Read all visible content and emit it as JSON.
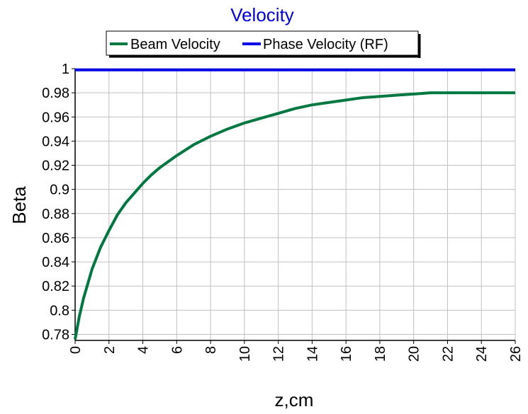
{
  "chart_data": {
    "type": "line",
    "title": "Velocity",
    "xlabel": "z,cm",
    "ylabel": "Beta",
    "xlim": [
      0,
      26
    ],
    "ylim": [
      0.775,
      1.0
    ],
    "x_ticks": [
      "0",
      "2",
      "4",
      "6",
      "8",
      "10",
      "12",
      "14",
      "16",
      "18",
      "20",
      "22",
      "24",
      "26"
    ],
    "y_ticks": [
      "1",
      "0.98",
      "0.96",
      "0.94",
      "0.92",
      "0.9",
      "0.88",
      "0.86",
      "0.84",
      "0.82",
      "0.8",
      "0.78"
    ],
    "grid": true,
    "legend_position": "top-center",
    "series": [
      {
        "name": "Beam Velocity",
        "color": "#007840",
        "x": [
          0,
          0.25,
          0.5,
          0.75,
          1,
          1.5,
          2,
          2.5,
          3,
          3.5,
          4,
          4.5,
          5,
          5.5,
          6,
          7,
          8,
          9,
          10,
          11,
          12,
          13,
          14,
          15,
          16,
          17,
          18,
          19,
          20,
          21,
          22,
          23,
          24,
          25,
          26
        ],
        "values": [
          0.776,
          0.795,
          0.81,
          0.822,
          0.834,
          0.852,
          0.866,
          0.879,
          0.889,
          0.897,
          0.905,
          0.912,
          0.918,
          0.923,
          0.928,
          0.937,
          0.944,
          0.95,
          0.955,
          0.959,
          0.963,
          0.967,
          0.97,
          0.972,
          0.974,
          0.976,
          0.977,
          0.978,
          0.979,
          0.98,
          0.98,
          0.98,
          0.98,
          0.98,
          0.98
        ]
      },
      {
        "name": "Phase Velocity (RF)",
        "color": "#0000e6",
        "x": [
          0,
          26
        ],
        "values": [
          0.999,
          0.999
        ]
      }
    ]
  }
}
